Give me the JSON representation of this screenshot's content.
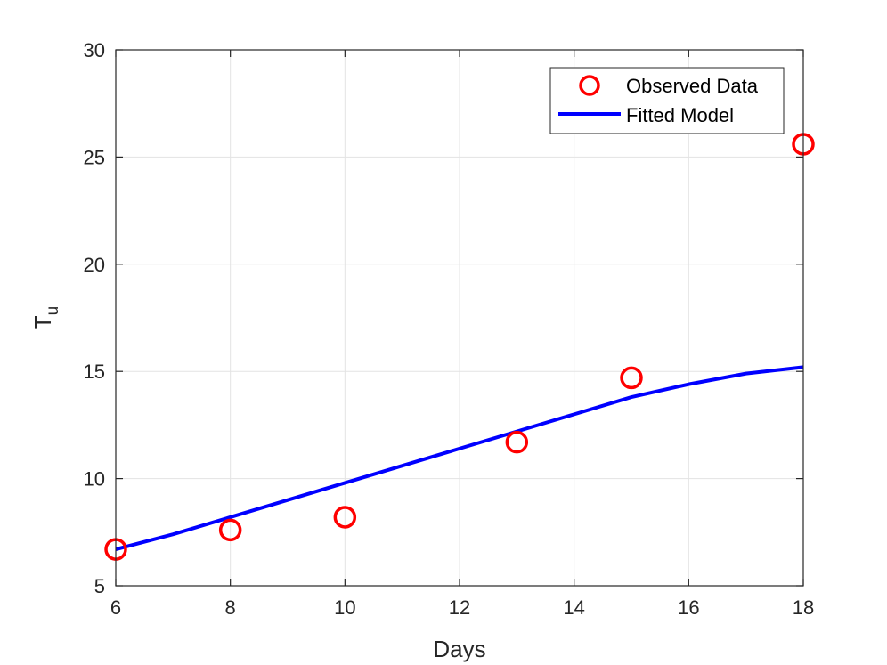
{
  "chart_data": {
    "type": "scatter",
    "xlabel": "Days",
    "ylabel": "T",
    "ylabel_subscript": "u",
    "xlim": [
      6,
      18
    ],
    "ylim": [
      5,
      30
    ],
    "xticks": [
      "6",
      "8",
      "10",
      "12",
      "14",
      "16",
      "18"
    ],
    "yticks": [
      "5",
      "10",
      "15",
      "20",
      "25",
      "30"
    ],
    "grid": true,
    "legend_position": "top-right",
    "series": [
      {
        "name": "Observed Data",
        "kind": "markers",
        "marker": "circle",
        "color": "#ff0000",
        "x": [
          6,
          8,
          10,
          13,
          15,
          18
        ],
        "y": [
          6.7,
          7.6,
          8.2,
          11.7,
          14.7,
          25.6
        ]
      },
      {
        "name": "Fitted Model",
        "kind": "line",
        "color": "#0000ff",
        "x": [
          6,
          7,
          8,
          9,
          10,
          11,
          12,
          13,
          14,
          15,
          16,
          17,
          18
        ],
        "y": [
          6.7,
          7.4,
          8.2,
          9.0,
          9.8,
          10.6,
          11.4,
          12.2,
          13.0,
          13.8,
          14.4,
          14.9,
          15.2
        ]
      }
    ]
  }
}
